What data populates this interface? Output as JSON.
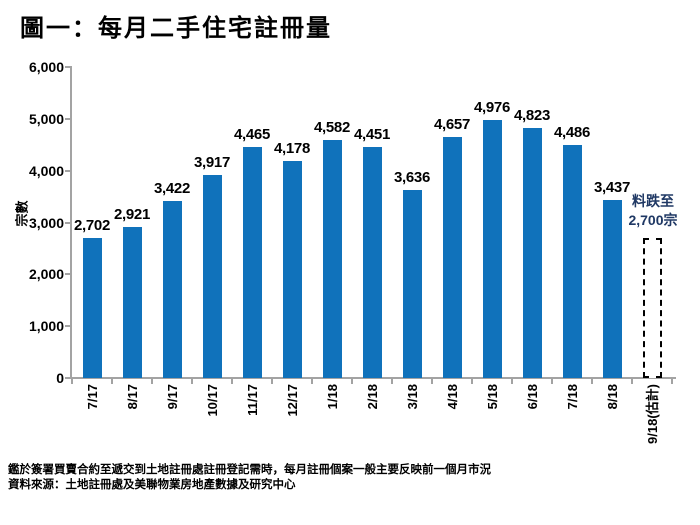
{
  "title": "圖一：每月二手住宅註冊量",
  "chart_data": {
    "type": "bar",
    "title": "圖一：每月二手住宅註冊量",
    "ylabel": "宗數",
    "xlabel": "",
    "ylim": [
      0,
      6000
    ],
    "ytick_step": 1000,
    "grid": false,
    "legend": "none",
    "categories": [
      "7/17",
      "8/17",
      "9/17",
      "10/17",
      "11/17",
      "12/17",
      "1/18",
      "2/18",
      "3/18",
      "4/18",
      "5/18",
      "6/18",
      "7/18",
      "8/18",
      "9/18(估計)"
    ],
    "values": [
      2702,
      2921,
      3422,
      3917,
      4465,
      4178,
      4582,
      4451,
      3636,
      4657,
      4976,
      4823,
      4486,
      3437,
      2700
    ],
    "estimated_index": 14,
    "estimated_bar_style": "dashed-outline-no-fill",
    "bar_color": "#1072BB",
    "axis_color": "#a3a3a3"
  },
  "annotation": {
    "line1": "料跌至",
    "line2": "2,700宗",
    "color": "#1F3864"
  },
  "footnotes": {
    "note": "鑑於簽署買賣合約至遞交到土地註冊處註冊登記需時，每月註冊個案一般主要反映前一個月市況",
    "source": "資料來源：土地註冊處及美聯物業房地產數據及研究中心"
  }
}
